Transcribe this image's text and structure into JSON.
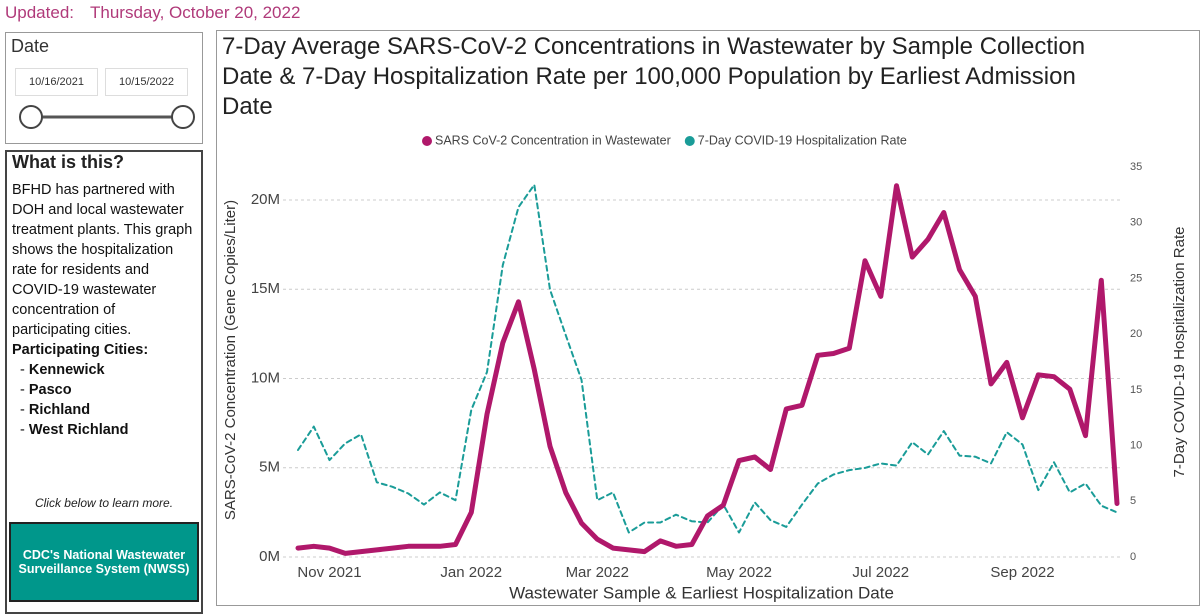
{
  "header": {
    "label": "Updated:",
    "date": "Thursday, October 20, 2022"
  },
  "slicer": {
    "title": "Date",
    "start": "10/16/2021",
    "end": "10/15/2022"
  },
  "info": {
    "title": "What is this?",
    "text": "BFHD has partnered with DOH and local wastewater treatment plants. This graph shows the hospitalization rate for residents and COVID-19 wastewater concentration of participating cities.",
    "cities_title": "Participating Cities:",
    "cities": [
      "Kennewick",
      "Pasco",
      "Richland",
      "West Richland"
    ],
    "note": "Click below to learn more."
  },
  "button": {
    "label": "CDC's National Wastewater Surveillance System (NWSS)"
  },
  "chart_data": {
    "type": "line",
    "title": "7-Day Average SARS-CoV-2 Concentrations in Wastewater by Sample Collection Date & 7-Day Hospitalization Rate per 100,000 Population by Earliest Admission Date",
    "x_label": "Wastewater Sample & Earliest Hospitalization Date",
    "y_label": "SARS-CoV-2 Concentration (Gene Copies/Liter)",
    "y2_label": "7-Day COVID-19 Hospitalization Rate",
    "categories": [
      null,
      null,
      "Nov 2021",
      null,
      null,
      null,
      null,
      null,
      null,
      null,
      null,
      "Jan 2022",
      null,
      null,
      null,
      null,
      null,
      null,
      null,
      "Mar 2022",
      null,
      null,
      null,
      null,
      null,
      null,
      null,
      null,
      "May 2022",
      null,
      null,
      null,
      null,
      null,
      null,
      null,
      null,
      "Jul 2022",
      null,
      null,
      null,
      null,
      null,
      null,
      null,
      null,
      "Sep 2022",
      null,
      null,
      null,
      null,
      null,
      null
    ],
    "ylim": [
      0,
      21850000
    ],
    "yticks": [
      {
        "value": 0,
        "label": "0M"
      },
      {
        "value": 5000000,
        "label": "5M"
      },
      {
        "value": 10000000,
        "label": "10M"
      },
      {
        "value": 15000000,
        "label": "15M"
      },
      {
        "value": 20000000,
        "label": "20M"
      }
    ],
    "y2lim": [
      0,
      35
    ],
    "y2ticks": [
      0,
      5,
      10,
      15,
      20,
      25,
      30,
      35
    ],
    "grid": true,
    "legend": "top",
    "series": [
      {
        "name": "SARS CoV-2 Concentration in Wastewater",
        "color": "#b0186b",
        "style": "solid",
        "values": [
          500000,
          600000,
          500000,
          200000,
          300000,
          400000,
          500000,
          600000,
          600000,
          600000,
          700000,
          2500000,
          8000000,
          12000000,
          14300000,
          10500000,
          6200000,
          3600000,
          1900000,
          1000000,
          500000,
          400000,
          300000,
          900000,
          600000,
          700000,
          2300000,
          2900000,
          5400000,
          5600000,
          4900000,
          8300000,
          8500000,
          11300000,
          11400000,
          11700000,
          16600000,
          14600000,
          20800000,
          16800000,
          17800000,
          19300000,
          16100000,
          14600000,
          9700000,
          10900000,
          7800000,
          10200000,
          10100000,
          9400000,
          6800000,
          15500000,
          3000000
        ]
      },
      {
        "name": "7-Day COVID-19 Hospitalization Rate",
        "color": "#1a9c98",
        "style": "dashed",
        "axis": "y2",
        "values": [
          9.6,
          11.7,
          8.7,
          10.2,
          11.0,
          6.7,
          6.3,
          5.7,
          4.7,
          5.8,
          5.1,
          13.2,
          16.6,
          26.2,
          31.4,
          33.4,
          24.0,
          19.9,
          15.9,
          5.1,
          5.8,
          2.2,
          3.1,
          3.1,
          3.8,
          3.2,
          3.1,
          4.7,
          2.2,
          4.9,
          3.3,
          2.7,
          4.7,
          6.6,
          7.4,
          7.8,
          8.0,
          8.4,
          8.2,
          10.3,
          9.2,
          11.3,
          9.1,
          9.0,
          8.4,
          11.2,
          10.1,
          6.0,
          8.5,
          5.8,
          6.6,
          4.6,
          4.0
        ]
      }
    ]
  }
}
